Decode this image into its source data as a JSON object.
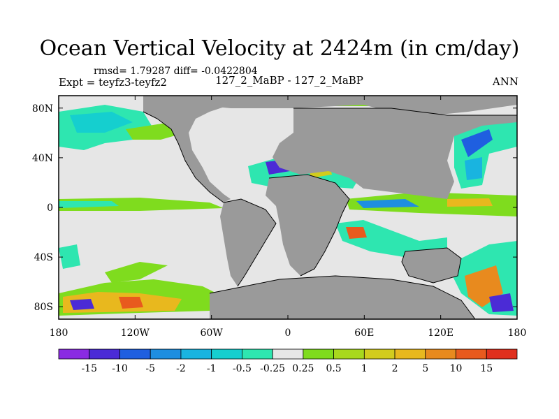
{
  "title": "Ocean Vertical Velocity at 2424m (in cm/day)",
  "stats": "rmsd= 1.79287 diff= -0.0422804",
  "experiment": "Expt = teyfz3-teyfz2",
  "case_label": "127_2_MaBP - 127_2_MaBP",
  "period": "ANN",
  "colors": {
    "land": "#9a9a9a",
    "near_zero": "#e6e6e6"
  },
  "map": {
    "lon_range": [
      -180,
      180
    ],
    "lat_range": [
      -90,
      90
    ],
    "lon_ticks": [
      {
        "value": -180,
        "label": "180"
      },
      {
        "value": -120,
        "label": "120W"
      },
      {
        "value": -60,
        "label": "60W"
      },
      {
        "value": 0,
        "label": "0"
      },
      {
        "value": 60,
        "label": "60E"
      },
      {
        "value": 120,
        "label": "120E"
      },
      {
        "value": 180,
        "label": "180"
      }
    ],
    "lat_ticks": [
      {
        "value": 80,
        "label": "80N"
      },
      {
        "value": 40,
        "label": "40N"
      },
      {
        "value": 0,
        "label": "0"
      },
      {
        "value": -40,
        "label": "40S"
      },
      {
        "value": -80,
        "label": "80S"
      }
    ]
  },
  "colorbar": {
    "colors": [
      "#8a2be2",
      "#4b2bd6",
      "#1f5fe0",
      "#1e8ee0",
      "#19b4e0",
      "#15cfcf",
      "#2ee6b0",
      "#e6e6e6",
      "#7fdc1e",
      "#a8d81e",
      "#d2cc1e",
      "#e8b81e",
      "#e88a1e",
      "#e85a1e",
      "#e0301e"
    ],
    "labels": [
      "-15",
      "-10",
      "-5",
      "-2",
      "-1",
      "-0.5",
      "-0.25",
      "0.25",
      "0.5",
      "1",
      "2",
      "5",
      "10",
      "15"
    ]
  }
}
